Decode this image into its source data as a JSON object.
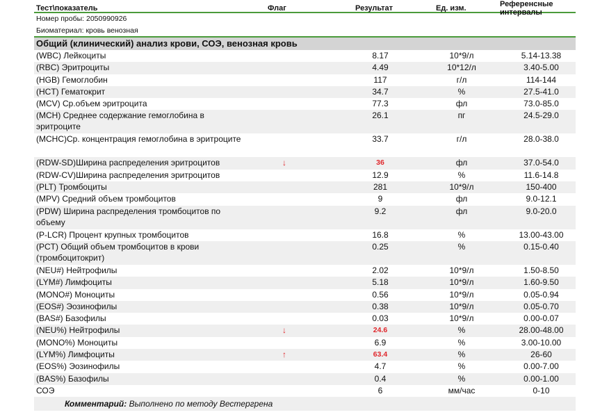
{
  "header": {
    "test": "Тест\\показатель",
    "flag": "Флаг",
    "result": "Результат",
    "unit": "Ед. изм.",
    "ref": "Референсные интервалы"
  },
  "sample_number": "Номер пробы: 2050990926",
  "biomaterial": "Биоматериал: кровь венозная",
  "section_title": "Общий (клинический) анализ крови, СОЭ,  венозная кровь",
  "rows": [
    {
      "name": "(WBC) Лейкоциты",
      "flag": "",
      "result": "8.17",
      "unit": "10*9/л",
      "ref": "5.14-13.38"
    },
    {
      "name": "(RBC) Эритроциты",
      "flag": "",
      "result": "4.49",
      "unit": "10*12/л",
      "ref": "3.40-5.00"
    },
    {
      "name": "(HGB) Гемоглобин",
      "flag": "",
      "result": "117",
      "unit": "г/л",
      "ref": "114-144"
    },
    {
      "name": "(HCT) Гематокрит",
      "flag": "",
      "result": "34.7",
      "unit": "%",
      "ref": "27.5-41.0"
    },
    {
      "name": "(MCV) Ср.объем эритроцита",
      "flag": "",
      "result": "77.3",
      "unit": "фл",
      "ref": "73.0-85.0"
    },
    {
      "name": "(MCH) Среднее содержание гемоглобина в эритроците",
      "flag": "",
      "result": "26.1",
      "unit": "пг",
      "ref": "24.5-29.0"
    },
    {
      "name": "(MCHC)Ср. концентрация гемоглобина в эритроците",
      "flag": "",
      "result": "33.7",
      "unit": "г/л",
      "ref": "28.0-38.0"
    },
    {
      "name": "(RDW-SD)Ширина распределения эритроцитов",
      "flag": "↓",
      "result": "36",
      "unit": "фл",
      "ref": "37.0-54.0"
    },
    {
      "name": "(RDW-CV)Ширина распределения эритроцитов",
      "flag": "",
      "result": "12.9",
      "unit": "%",
      "ref": "11.6-14.8"
    },
    {
      "name": "(PLT) Тромбоциты",
      "flag": "",
      "result": "281",
      "unit": "10*9/л",
      "ref": "150-400"
    },
    {
      "name": "(MPV) Средний объем тромбоцитов",
      "flag": "",
      "result": "9",
      "unit": "фл",
      "ref": "9.0-12.1"
    },
    {
      "name": "(PDW) Ширина распределения тромбоцитов по объему",
      "flag": "",
      "result": "9.2",
      "unit": "фл",
      "ref": "9.0-20.0"
    },
    {
      "name": "(P-LCR) Процент крупных тромбоцитов",
      "flag": "",
      "result": "16.8",
      "unit": "%",
      "ref": "13.00-43.00"
    },
    {
      "name": "(PCT) Общий объем тромбоцитов в крови (тромбоцитокрит)",
      "flag": "",
      "result": "0.25",
      "unit": "%",
      "ref": "0.15-0.40"
    },
    {
      "name": "(NEU#) Нейтрофилы",
      "flag": "",
      "result": "2.02",
      "unit": "10*9/л",
      "ref": "1.50-8.50"
    },
    {
      "name": "(LYM#) Лимфоциты",
      "flag": "",
      "result": "5.18",
      "unit": "10*9/л",
      "ref": "1.60-9.50"
    },
    {
      "name": "(MONO#) Моноциты",
      "flag": "",
      "result": "0.56",
      "unit": "10*9/л",
      "ref": "0.05-0.94"
    },
    {
      "name": "(EOS#) Эозинофилы",
      "flag": "",
      "result": "0.38",
      "unit": "10*9/л",
      "ref": "0.05-0.70"
    },
    {
      "name": "(BAS#) Базофилы",
      "flag": "",
      "result": "0.03",
      "unit": "10*9/л",
      "ref": "0.00-0.07"
    },
    {
      "name": "(NEU%) Нейтрофилы",
      "flag": "↓",
      "result": "24.6",
      "unit": "%",
      "ref": "28.00-48.00"
    },
    {
      "name": "(MONO%) Моноциты",
      "flag": "",
      "result": "6.9",
      "unit": "%",
      "ref": "3.00-10.00"
    },
    {
      "name": "(LYM%) Лимфоциты",
      "flag": "↑",
      "result": "63.4",
      "unit": "%",
      "ref": "26-60"
    },
    {
      "name": "(EOS%) Эозинофилы",
      "flag": "",
      "result": "4.7",
      "unit": "%",
      "ref": "0.00-7.00"
    },
    {
      "name": "(BAS%) Базофилы",
      "flag": "",
      "result": "0.4",
      "unit": "%",
      "ref": "0.00-1.00"
    },
    {
      "name": "СОЭ",
      "flag": "",
      "result": "6",
      "unit": "мм/час",
      "ref": "0-10"
    }
  ],
  "comment_label": "Комментарий:",
  "comment_text": " Выполнено по методу Вестергрена",
  "colors": {
    "accent": "#4a9a3a",
    "flag": "#e0262b",
    "section_bg": "#d4d4d4",
    "stripe": "#efefef"
  }
}
